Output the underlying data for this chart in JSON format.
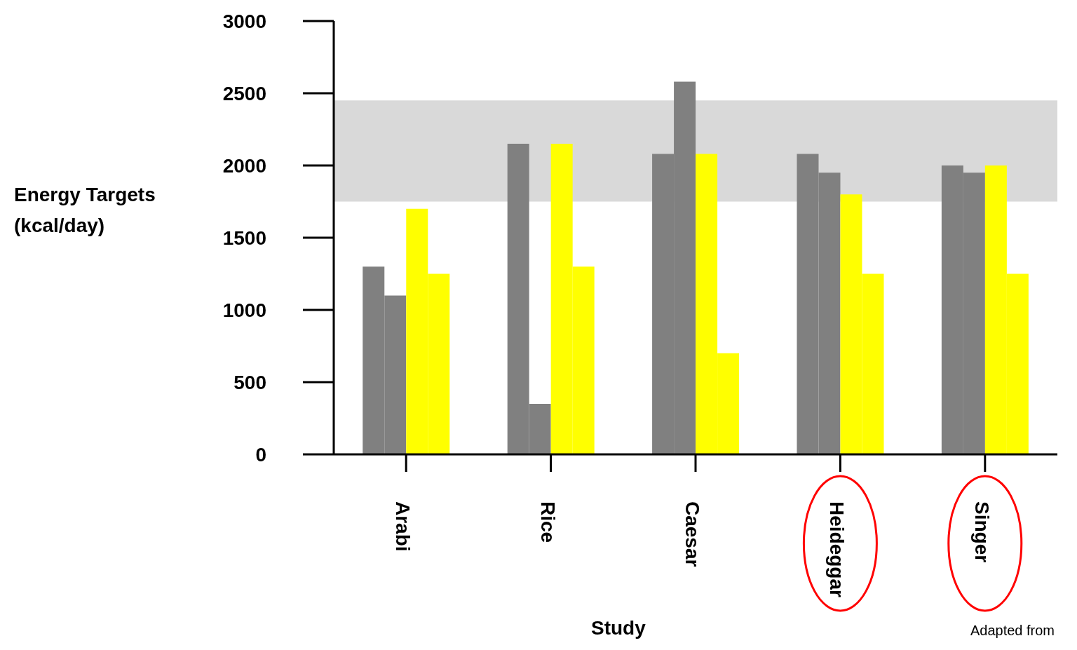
{
  "chart_data": {
    "type": "bar",
    "xlabel": "Study",
    "ylabel": "Energy Targets\n(kcal/day)",
    "categories": [
      "Arabi",
      "Rice",
      "Caesar",
      "Heideggar",
      "Singer"
    ],
    "series": [
      {
        "color": "#808080",
        "values": [
          1300,
          2150,
          2080,
          2080,
          2000
        ]
      },
      {
        "color": "#808080",
        "values": [
          1100,
          350,
          2580,
          1950,
          1950
        ]
      },
      {
        "color": "#ffff00",
        "values": [
          1700,
          2150,
          2080,
          1800,
          2000
        ]
      },
      {
        "color": "#ffff00",
        "values": [
          1250,
          1300,
          700,
          1250,
          1250
        ]
      }
    ],
    "ylim": [
      0,
      3000
    ],
    "yticks": [
      0,
      500,
      1000,
      1500,
      2000,
      2500,
      3000
    ],
    "bands": [
      {
        "axis": "y",
        "from": 1750,
        "to": 2450,
        "color": "#d9d9d9"
      }
    ],
    "annotations": [
      "Adapted from"
    ],
    "grid": false,
    "legend": false
  }
}
